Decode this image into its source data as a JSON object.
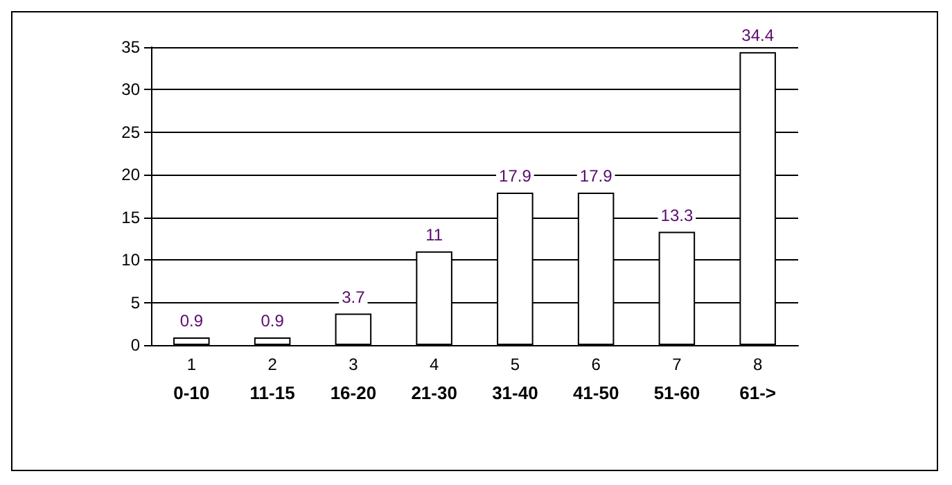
{
  "chart_data": {
    "type": "bar",
    "categories": [
      "1",
      "2",
      "3",
      "4",
      "5",
      "6",
      "7",
      "8"
    ],
    "values": [
      0.9,
      0.9,
      3.7,
      11,
      17.9,
      17.9,
      13.3,
      34.4
    ],
    "color": "#ffffff",
    "ylim": [
      0,
      35
    ],
    "yticks": [
      0,
      5,
      10,
      15,
      20,
      25,
      30,
      35
    ],
    "grid": "y",
    "data_labels": true,
    "annotations": [
      "0-10",
      "11-15",
      "16-20",
      "21-30",
      "31-40",
      "41-50",
      "51-60",
      "61->"
    ]
  }
}
